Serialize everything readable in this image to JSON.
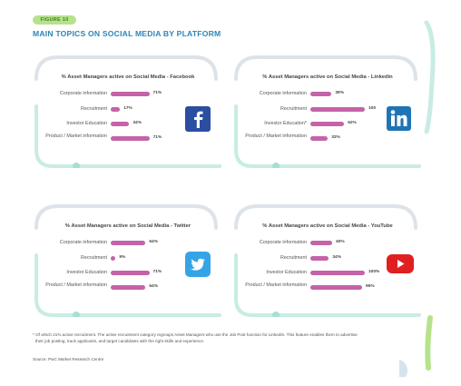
{
  "figure_label": "FIGURE 10",
  "title": "MAIN TOPICS ON SOCIAL MEDIA BY PLATFORM",
  "colors": {
    "bar": "#c563a8",
    "frame_teal": "#c8ece4",
    "frame_grey": "#dde3e8",
    "accent_green": "#b6e28c",
    "title_blue": "#2d84b8"
  },
  "chart_data": [
    {
      "type": "bar",
      "title": "% Asset Managers active on Social Media - Facebook",
      "categories": [
        "Corporate information",
        "Recruitment",
        "Investor Education",
        "Product / Market information"
      ],
      "values": [
        71,
        17,
        34,
        71
      ],
      "value_labels": [
        "71%",
        "17%",
        "34%",
        "71%"
      ],
      "xlim": [
        0,
        100
      ],
      "logo": "facebook-icon"
    },
    {
      "type": "bar",
      "title": "% Asset Managers active on Social Media - Linkedin",
      "categories": [
        "Corporate information",
        "Recruitment",
        "Investor Education*",
        "Product / Market information"
      ],
      "values": [
        39,
        100,
        62,
        32
      ],
      "value_labels": [
        "39%",
        "100",
        "62%",
        "32%"
      ],
      "xlim": [
        0,
        100
      ],
      "logo": "linkedin-icon"
    },
    {
      "type": "bar",
      "title": "% Asset Managers active on Social Media - Twitter",
      "categories": [
        "Corporate information",
        "Recruitment",
        "Investor Education",
        "Product / Market information"
      ],
      "values": [
        64,
        9,
        71,
        64
      ],
      "value_labels": [
        "64%",
        "9%",
        "71%",
        "64%"
      ],
      "xlim": [
        0,
        100
      ],
      "logo": "twitter-icon"
    },
    {
      "type": "bar",
      "title": "% Asset Managers active on Social Media - YouTube",
      "categories": [
        "Corporate information",
        "Recruitment",
        "Investor Education",
        "Product / Market information"
      ],
      "values": [
        40,
        34,
        100,
        95
      ],
      "value_labels": [
        "40%",
        "34%",
        "100%",
        "95%"
      ],
      "xlim": [
        0,
        100
      ],
      "logo": "youtube-icon"
    }
  ],
  "footnote_line1": "* Of which 21% active recruitment. The active recruitment category regroups Asset Managers who use the Job Post function for LinkedIn. This feature enables them to advertise",
  "footnote_line2": "their job posting, track applicants, and target candidates with the right skills and experience.",
  "source": "Source: PwC Market Research Centre"
}
